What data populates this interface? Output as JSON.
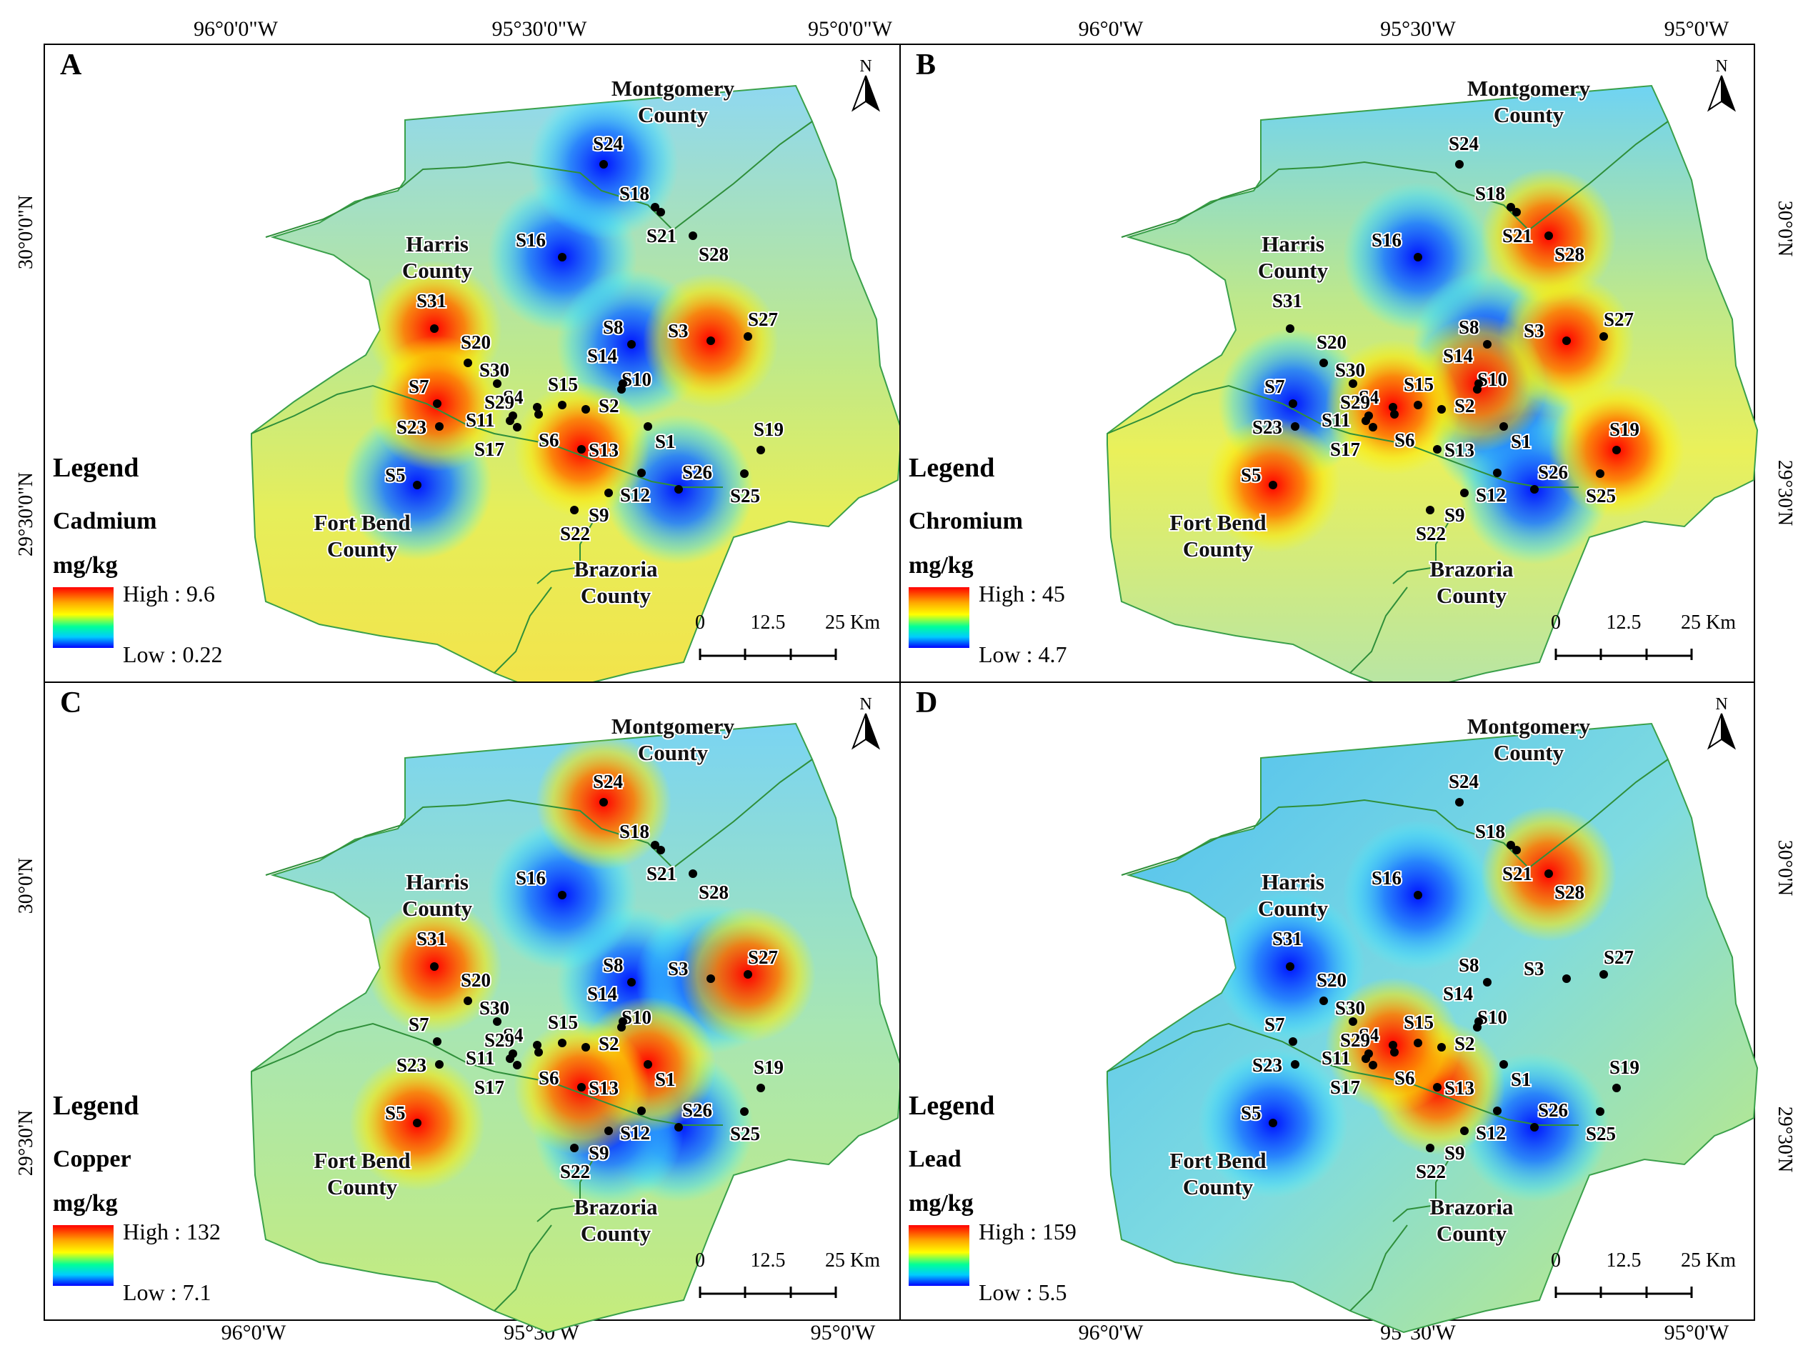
{
  "coords": {
    "top_left": "96°0'0\"W",
    "top_mid": "95°30'0\"W",
    "top_right": "95°0'0\"W",
    "top_left_b": "96°0'W",
    "top_mid_b": "95°30'W",
    "top_right_b": "95°0'W",
    "bottom_left": "96°0'W",
    "bottom_mid": "95°30'W",
    "bottom_right": "95°0'W",
    "bottom_left_b": "96°0'W",
    "bottom_mid_b": "95°30'W",
    "bottom_right_b": "95°0'W",
    "lat_a_top": "30°0'0\"N",
    "lat_a_bottom": "29°30'0\"N",
    "lat_c_top": "30°0'N",
    "lat_c_bottom": "29°30'N",
    "lat_right_top": "30°0'N",
    "lat_right_bottom": "29°30'N",
    "lat_right_top_d": "30°0'N",
    "lat_right_bottom_d": "29°30'N"
  },
  "counties": {
    "montgomery": [
      "Montgomery",
      "County"
    ],
    "harris": [
      "Harris",
      "County"
    ],
    "fort_bend": [
      "Fort Bend",
      "County"
    ],
    "brazoria": [
      "Brazoria",
      "County"
    ]
  },
  "north_label": "N",
  "scale": {
    "ticks": [
      "0",
      "12.5",
      "25 Km"
    ]
  },
  "legend_title": "Legend",
  "unit": "mg/kg",
  "panels": [
    {
      "letter": "A",
      "metal": "Cadmium",
      "high_label": "High : 9.6",
      "low_label": "Low : 0.22",
      "high": 9.6,
      "low": 0.22,
      "hotspots": [
        "S3",
        "S31",
        "S13",
        "S7"
      ],
      "coldspots": [
        "S16",
        "S24",
        "S8",
        "S26",
        "S5"
      ]
    },
    {
      "letter": "B",
      "metal": "Chromium",
      "high_label": "High : 45",
      "low_label": "Low : 4.7",
      "high": 45,
      "low": 4.7,
      "hotspots": [
        "S3",
        "S14",
        "S4",
        "S28",
        "S19",
        "S5"
      ],
      "coldspots": [
        "S16",
        "S7",
        "S1",
        "S26",
        "S8"
      ]
    },
    {
      "letter": "C",
      "metal": "Copper",
      "high_label": "High : 132",
      "low_label": "Low : 7.1",
      "high": 132,
      "low": 7.1,
      "hotspots": [
        "S5",
        "S24",
        "S31",
        "S27",
        "S1",
        "S13"
      ],
      "coldspots": [
        "S8",
        "S3",
        "S16",
        "S26",
        "S9"
      ]
    },
    {
      "letter": "D",
      "metal": "Lead",
      "high_label": "High : 159",
      "low_label": "Low : 5.5",
      "high": 159,
      "low": 5.5,
      "hotspots": [
        "S13",
        "S28",
        "S4"
      ],
      "coldspots": [
        "S16",
        "S26",
        "S31",
        "S5"
      ]
    }
  ],
  "sites": [
    "S1",
    "S2",
    "S3",
    "S4",
    "S5",
    "S6",
    "S7",
    "S8",
    "S9",
    "S10",
    "S11",
    "S12",
    "S13",
    "S14",
    "S15",
    "S16",
    "S17",
    "S18",
    "S19",
    "S20",
    "S21",
    "S22",
    "S23",
    "S24",
    "S25",
    "S26",
    "S27",
    "S28",
    "S29",
    "S30",
    "S31"
  ],
  "colors": {
    "high": "#ff0000",
    "mid_high": "#ffff00",
    "mid_low": "#00ffff",
    "low": "#0000ff",
    "base_fill": "#d9f25c",
    "frame": "#000000"
  }
}
